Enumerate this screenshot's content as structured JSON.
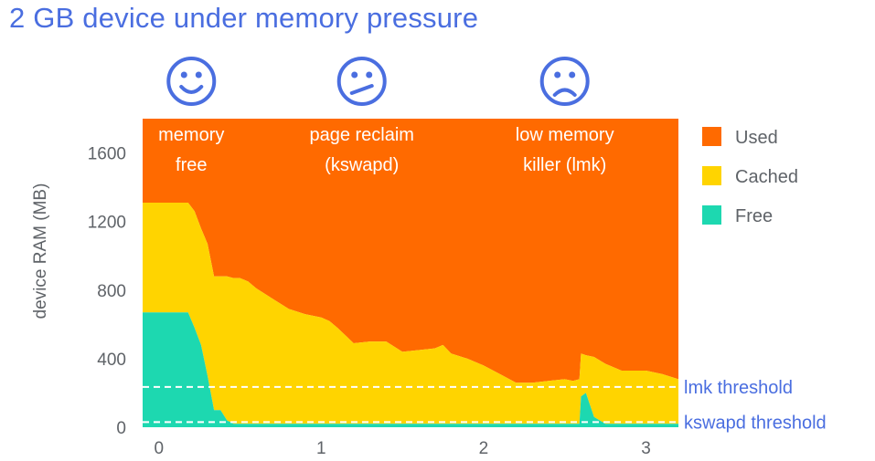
{
  "title": "2 GB device under memory pressure",
  "chart_data": {
    "type": "area",
    "stacked": true,
    "ylabel": "device RAM (MB)",
    "xlabel": "",
    "xlim": [
      -0.1,
      3.2
    ],
    "ylim": [
      0,
      1800
    ],
    "xticks": [
      0,
      1,
      2,
      3
    ],
    "yticks": [
      0,
      400,
      800,
      1200,
      1600
    ],
    "x": [
      -0.1,
      0.18,
      0.22,
      0.26,
      0.3,
      0.34,
      0.38,
      0.42,
      0.46,
      0.5,
      0.55,
      0.6,
      0.7,
      0.8,
      0.9,
      1.0,
      1.05,
      1.1,
      1.2,
      1.3,
      1.4,
      1.5,
      1.6,
      1.7,
      1.75,
      1.8,
      1.9,
      2.0,
      2.1,
      2.2,
      2.3,
      2.4,
      2.5,
      2.55,
      2.59,
      2.6,
      2.63,
      2.68,
      2.75,
      2.85,
      3.0,
      3.1,
      3.2
    ],
    "series": [
      {
        "name": "Free",
        "color": "#1dd8b0",
        "values": [
          670,
          670,
          580,
          480,
          300,
          100,
          100,
          40,
          20,
          20,
          20,
          20,
          20,
          20,
          20,
          20,
          20,
          20,
          20,
          20,
          20,
          20,
          20,
          20,
          20,
          20,
          20,
          20,
          20,
          20,
          20,
          20,
          20,
          20,
          20,
          180,
          200,
          60,
          20,
          20,
          20,
          20,
          20
        ]
      },
      {
        "name": "Cached",
        "values": [
          640,
          640,
          680,
          680,
          770,
          780,
          780,
          840,
          850,
          850,
          830,
          790,
          730,
          670,
          640,
          620,
          600,
          560,
          470,
          480,
          480,
          420,
          430,
          440,
          460,
          410,
          380,
          340,
          290,
          240,
          240,
          250,
          260,
          250,
          260,
          250,
          220,
          350,
          350,
          310,
          310,
          290,
          260
        ]
      },
      {
        "name": "Used",
        "color": "#ff6a00",
        "values": [
          490,
          490,
          540,
          640,
          730,
          920,
          920,
          920,
          930,
          930,
          950,
          990,
          1050,
          1110,
          1140,
          1160,
          1180,
          1220,
          1310,
          1300,
          1300,
          1360,
          1350,
          1340,
          1320,
          1370,
          1400,
          1440,
          1490,
          1540,
          1540,
          1530,
          1520,
          1530,
          1520,
          1370,
          1380,
          1390,
          1430,
          1470,
          1470,
          1490,
          1520
        ]
      }
    ],
    "thresholds": [
      {
        "label": "lmk threshold",
        "value": 235
      },
      {
        "label": "kswapd threshold",
        "value": 30
      }
    ],
    "phases": [
      {
        "line1": "memory",
        "line2": "free",
        "x": 0.2,
        "face": "happy"
      },
      {
        "line1": "page reclaim",
        "line2": "(kswapd)",
        "x": 1.25,
        "face": "neutral"
      },
      {
        "line1": "low memory",
        "line2": "killer (lmk)",
        "x": 2.5,
        "face": "sad"
      }
    ],
    "legend": [
      "Used",
      "Cached",
      "Free"
    ],
    "legend_position": "right",
    "grid": false
  },
  "colors": {
    "used": "#ff6a00",
    "cached": "#ffd400",
    "free": "#1dd8b0",
    "accent": "#4a6ee0"
  }
}
